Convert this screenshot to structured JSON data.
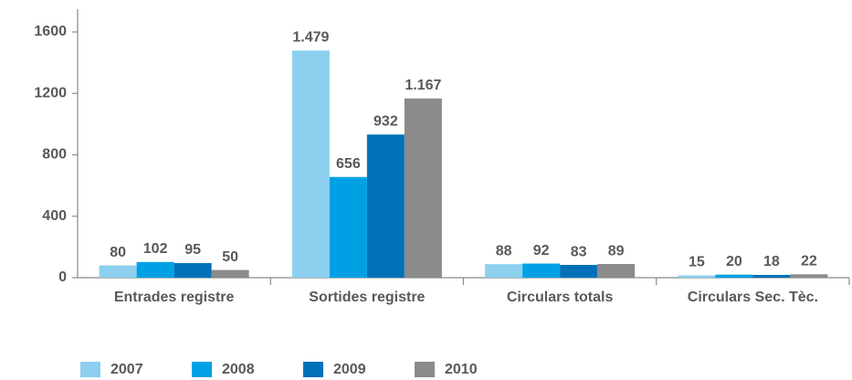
{
  "chart_data": {
    "type": "bar",
    "categories": [
      "Entrades registre",
      "Sortides registre",
      "Circulars totals",
      "Circulars Sec. Tèc."
    ],
    "series": [
      {
        "name": "2007",
        "color": "#8ccfef",
        "values": [
          80,
          1479,
          88,
          15
        ],
        "value_labels": [
          "80",
          "1.479",
          "88",
          "15"
        ]
      },
      {
        "name": "2008",
        "color": "#00a1e4",
        "values": [
          102,
          656,
          92,
          20
        ]
      },
      {
        "name": "2009",
        "color": "#0071b9",
        "values": [
          95,
          932,
          83,
          18
        ]
      },
      {
        "name": "2010",
        "color": "#8b8b8b",
        "values": [
          50,
          1167,
          89,
          22
        ],
        "value_labels": [
          "50",
          "1.167",
          "89",
          "22"
        ]
      }
    ],
    "ylim": [
      0,
      1600
    ],
    "yticks": [
      0,
      400,
      800,
      1200,
      1600
    ],
    "grid": false,
    "legend": "bottom"
  }
}
